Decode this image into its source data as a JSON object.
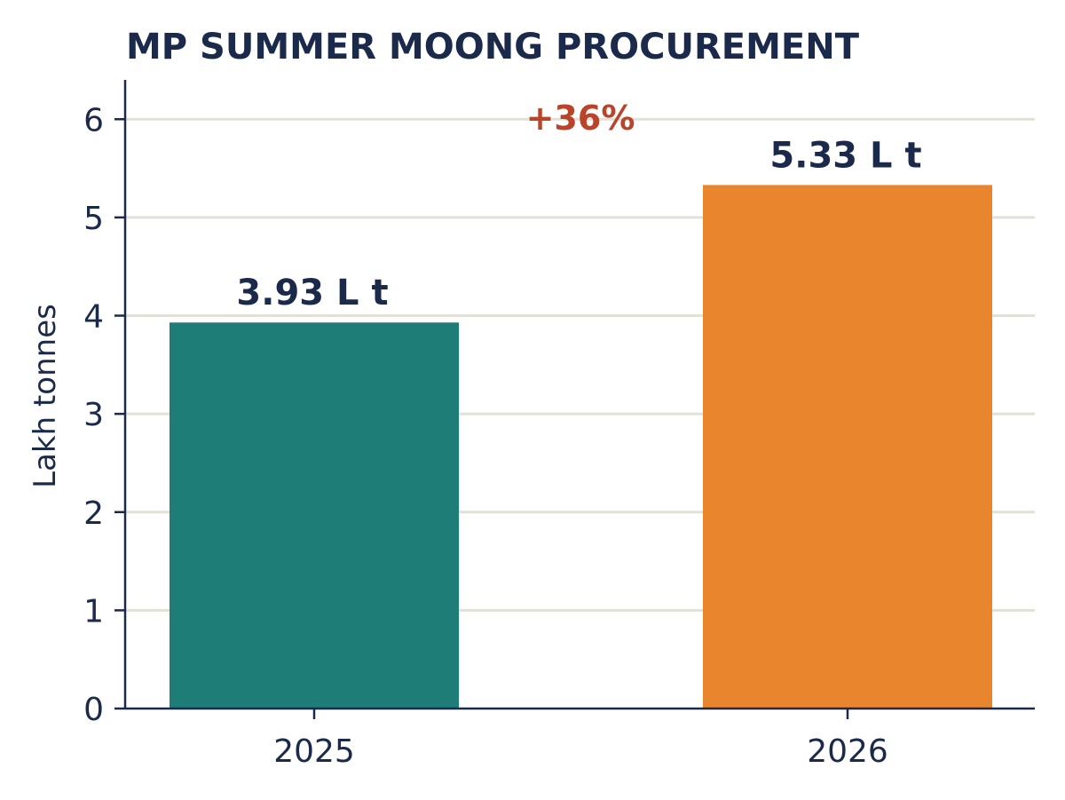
{
  "chart_data": {
    "type": "bar",
    "title": "MP SUMMER MOONG PROCUREMENT",
    "xlabel": "",
    "ylabel": "Lakh tonnes",
    "categories": [
      "2025",
      "2026"
    ],
    "values": [
      3.93,
      5.33
    ],
    "data_labels": [
      "3.93 L t",
      "5.33 L t"
    ],
    "bar_colors": [
      "#1f7d78",
      "#e8852d"
    ],
    "ylim": [
      0,
      6.4
    ],
    "yticks": [
      0,
      1,
      2,
      3,
      4,
      5,
      6
    ],
    "grid": true,
    "annotation": "+36%",
    "colors": {
      "text": "#1b2a4a",
      "annotation": "#b9442a",
      "grid": "#e3e0d6",
      "axis": "#1b2a4a"
    }
  }
}
